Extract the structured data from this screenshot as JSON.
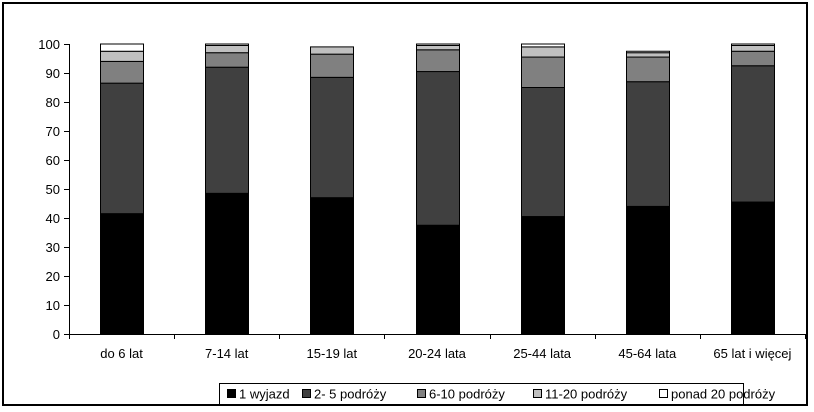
{
  "chart_data": {
    "type": "bar",
    "stacked": true,
    "categories": [
      "do 6 lat",
      "7-14 lat",
      "15-19 lat",
      "20-24 lata",
      "25-44 lata",
      "45-64 lata",
      "65 lat i więcej"
    ],
    "series": [
      {
        "name": "1 wyjazd",
        "color": "#000000",
        "values": [
          41.5,
          48.5,
          47,
          37.5,
          40.5,
          44,
          45.5
        ]
      },
      {
        "name": "2- 5 podróży",
        "color": "#404040",
        "values": [
          45,
          43.5,
          41.5,
          53,
          44.5,
          43,
          47
        ]
      },
      {
        "name": "6-10 podróży",
        "color": "#808080",
        "values": [
          7.5,
          5,
          8,
          7.5,
          10.5,
          8.5,
          5
        ]
      },
      {
        "name": "11-20 podróży",
        "color": "#c0c0c0",
        "values": [
          3.5,
          2.5,
          2.5,
          1.5,
          3.5,
          1.5,
          2
        ]
      },
      {
        "name": "ponad 20 podróży",
        "color": "#ffffff",
        "values": [
          2.5,
          0.5,
          0,
          0.5,
          1,
          0.5,
          0.5
        ]
      }
    ],
    "ylim": [
      0,
      100
    ],
    "yticks": [
      "0",
      "10",
      "20",
      "30",
      "40",
      "50",
      "60",
      "70",
      "80",
      "90",
      "100"
    ],
    "legend_position": "bottom",
    "grid": false
  }
}
